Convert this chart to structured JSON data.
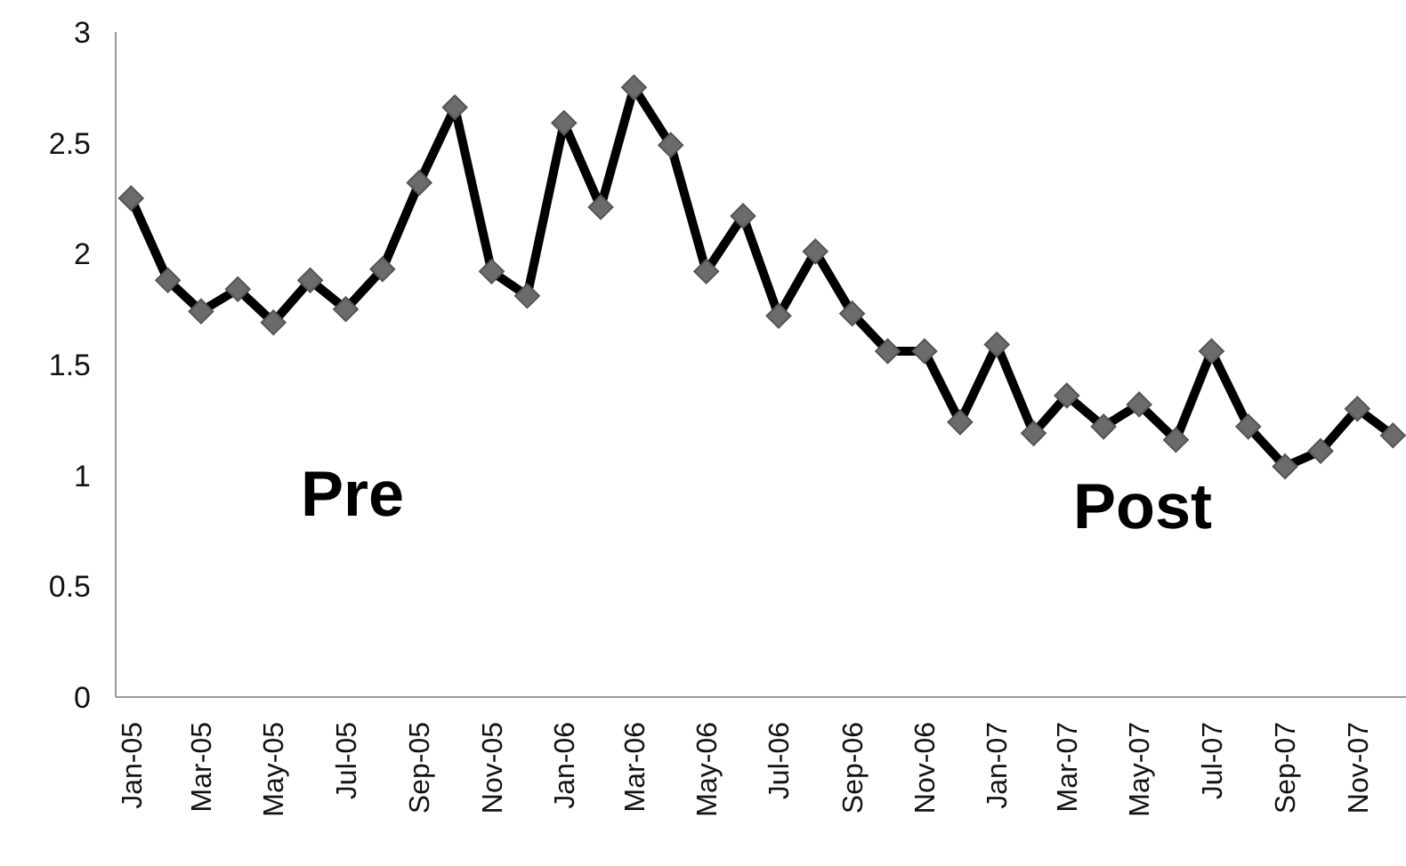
{
  "chart_data": {
    "type": "line",
    "x": [
      "2005-01",
      "2005-02",
      "2005-03",
      "2005-04",
      "2005-05",
      "2005-06",
      "2005-07",
      "2005-08",
      "2005-09",
      "2005-10",
      "2005-11",
      "2005-12",
      "2006-01",
      "2006-02",
      "2006-03",
      "2006-04",
      "2006-05",
      "2006-06",
      "2006-07",
      "2006-08",
      "2006-09",
      "2006-10",
      "2006-11",
      "2006-12",
      "2007-01",
      "2007-02",
      "2007-03",
      "2007-04",
      "2007-05",
      "2007-06",
      "2007-07",
      "2007-08",
      "2007-09",
      "2007-10",
      "2007-11",
      "2007-12"
    ],
    "series": [
      {
        "color": "#000000",
        "values": [
          2.25,
          1.88,
          1.74,
          1.84,
          1.69,
          1.88,
          1.75,
          1.93,
          2.32,
          2.66,
          1.92,
          1.81,
          2.59,
          2.21,
          2.75,
          2.49,
          1.92,
          2.17,
          1.72,
          2.01,
          1.73,
          1.56,
          1.56,
          1.24,
          1.59,
          1.19,
          1.36,
          1.22,
          1.32,
          1.16,
          1.56,
          1.22,
          1.04,
          1.11,
          1.3,
          1.18
        ]
      }
    ],
    "marker": "diamond",
    "line_style": "solid",
    "grid": false,
    "xlim": [
      "2004-12-19",
      "2007-12-12"
    ],
    "xticks": [
      {
        "value": "2005-01",
        "label": "Jan-05"
      },
      {
        "value": "2005-03",
        "label": "Mar-05"
      },
      {
        "value": "2005-05",
        "label": "May-05"
      },
      {
        "value": "2005-07",
        "label": "Jul-05"
      },
      {
        "value": "2005-09",
        "label": "Sep-05"
      },
      {
        "value": "2005-11",
        "label": "Nov-05"
      },
      {
        "value": "2006-01",
        "label": "Jan-06"
      },
      {
        "value": "2006-03",
        "label": "Mar-06"
      },
      {
        "value": "2006-05",
        "label": "May-06"
      },
      {
        "value": "2006-07",
        "label": "Jul-06"
      },
      {
        "value": "2006-09",
        "label": "Sep-06"
      },
      {
        "value": "2006-11",
        "label": "Nov-06"
      },
      {
        "value": "2007-01",
        "label": "Jan-07"
      },
      {
        "value": "2007-03",
        "label": "Mar-07"
      },
      {
        "value": "2007-05",
        "label": "May-07"
      },
      {
        "value": "2007-07",
        "label": "Jul-07"
      },
      {
        "value": "2007-09",
        "label": "Sep-07"
      },
      {
        "value": "2007-11",
        "label": "Nov-07"
      }
    ],
    "ylim": [
      0,
      3
    ],
    "yticks": [
      0,
      0.5,
      1,
      1.5,
      2,
      2.5,
      3
    ],
    "annotations": [
      "Pre",
      "Post"
    ]
  }
}
